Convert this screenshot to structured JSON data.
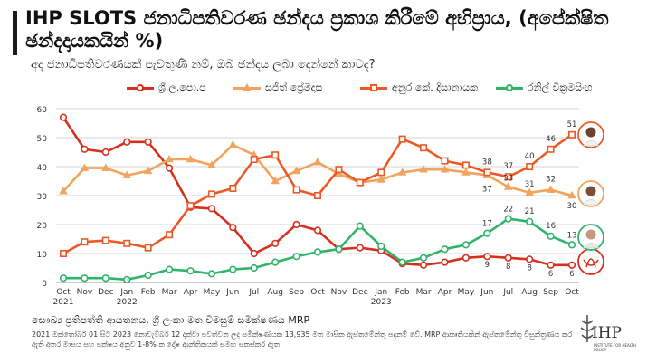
{
  "title": "IHP SLOTS ජනාධිපතිවරණ ඡන්දය ප්‍රකාශ කිරීමේ අභිප්‍රාය, (අපේක්ෂිත ඡන්දදායකයින් %)",
  "subtitle": "අද ජනාධිපතිවරණයක් පැවතුණි නම්, ඔබ ඡන්දය ලබා දෙන්නේ කාටද?",
  "legend": [
    "ශ්‍රී.ල.පො.ප",
    "සජිත් ප්‍රේමදාස",
    "අනුර කේ. දිසානායක",
    "රනිල් වික්‍රමසිංහ"
  ],
  "source": "සෞඛ්‍ය ප්‍රතිපත්ති ආයතනය, ශ්‍රී ලංකා මත විමසුම් සමීක්ෂණය MRP",
  "note": "2021 ඔක්තෝබර් 01 සිට 2023 නොවැම්බර් 12 දක්වා පවත්වන ලද සමීක්ෂණයක 13,935 මත මාසික ඇස්තමේන්තු පදනම් වේ. MRP ආකෘතියකින් ඇස්තමේන්තු විසුන්ත්‍රණය කර ඇති අතර මාසය සහ පක්ෂය අනුව 1-8% ක දෝෂ ආන්තිකයක් සමඟ සකස්කර ඇත.",
  "logo": {
    "name": "IHP",
    "tag": "INSTITUTE FOR HEALTH POLICY"
  },
  "colors": {
    "slpp": "#d6301f",
    "sajith": "#f2a35e",
    "akd": "#ea5a26",
    "ranil": "#2fb56a",
    "grid": "#d4d4d4"
  },
  "chart_data": {
    "type": "line",
    "x": [
      "Oct 2021",
      "Nov 2021",
      "Dec 2021",
      "Jan 2022",
      "Feb 2022",
      "Mar 2022",
      "Apr 2022",
      "May 2022",
      "Jun 2022",
      "Jul 2022",
      "Aug 2022",
      "Sep 2022",
      "Oct 2022",
      "Nov 2022",
      "Dec 2022",
      "Jan 2023",
      "Feb 2023",
      "Mar 2023",
      "Apr 2023",
      "May 2023",
      "Jun 2023",
      "Jul 2023",
      "Aug 2023",
      "Sep 2023",
      "Oct 2023"
    ],
    "tick_labels": [
      "Oct\n2021",
      "Nov",
      "Dec",
      "Jan\n2022",
      "Feb",
      "Mar",
      "Apr",
      "May",
      "Jun",
      "Jul",
      "Aug",
      "Sep",
      "Oct",
      "Nov",
      "Dec",
      "Jan\n2023",
      "Feb",
      "Mar",
      "Apr",
      "May",
      "Jun",
      "Jul",
      "Aug",
      "Sep",
      "Oct"
    ],
    "ylim": [
      0,
      60
    ],
    "yticks": [
      0,
      10,
      20,
      30,
      40,
      50,
      60
    ],
    "grid": true,
    "legend_position": "top",
    "series": [
      {
        "name": "ශ්‍රී.ල.පො.ප",
        "marker": "circle",
        "values": [
          57,
          46,
          45,
          48.5,
          48.5,
          39.5,
          26,
          25.5,
          19,
          10,
          13.5,
          20,
          18,
          11.5,
          12,
          11,
          6.5,
          6,
          7,
          8.5,
          9,
          8.5,
          8,
          6,
          6
        ]
      },
      {
        "name": "සජිත් ප්‍රේමදාස",
        "marker": "triangle",
        "values": [
          31.5,
          39.5,
          39.5,
          37,
          38.5,
          42.5,
          42.5,
          40.5,
          47.5,
          44,
          35,
          38.5,
          41.5,
          37.5,
          34.5,
          35.5,
          38,
          39,
          39,
          38,
          37,
          33,
          31,
          32,
          30
        ]
      },
      {
        "name": "අනුර කේ. දිසානායක",
        "marker": "square",
        "values": [
          10,
          14,
          14.5,
          13.5,
          12,
          16.5,
          26.5,
          30.5,
          32.5,
          42.5,
          44,
          32,
          30,
          39,
          34.5,
          38,
          49.5,
          46.5,
          42,
          40.5,
          38,
          36.5,
          40,
          46,
          51
        ]
      },
      {
        "name": "රනිල් වික්‍රමසිංහ",
        "marker": "circle",
        "values": [
          1.5,
          1.5,
          1.5,
          1,
          2.5,
          4.5,
          4,
          3,
          4.5,
          5,
          7,
          9,
          10.5,
          11.5,
          19.5,
          12.5,
          7,
          8.5,
          11.5,
          13,
          17,
          22,
          21,
          16,
          13
        ]
      }
    ],
    "data_labels": [
      {
        "series": 0,
        "index": 20,
        "text": "9"
      },
      {
        "series": 0,
        "index": 21,
        "text": "8"
      },
      {
        "series": 0,
        "index": 22,
        "text": "8"
      },
      {
        "series": 0,
        "index": 23,
        "text": "6"
      },
      {
        "series": 0,
        "index": 24,
        "text": "6"
      },
      {
        "series": 1,
        "index": 20,
        "text": "37"
      },
      {
        "series": 1,
        "index": 21,
        "text": "33"
      },
      {
        "series": 1,
        "index": 22,
        "text": "31"
      },
      {
        "series": 1,
        "index": 23,
        "text": "32"
      },
      {
        "series": 1,
        "index": 24,
        "text": "30"
      },
      {
        "series": 2,
        "index": 20,
        "text": "38"
      },
      {
        "series": 2,
        "index": 21,
        "text": "37"
      },
      {
        "series": 2,
        "index": 22,
        "text": "40"
      },
      {
        "series": 2,
        "index": 23,
        "text": "46"
      },
      {
        "series": 2,
        "index": 24,
        "text": "51"
      },
      {
        "series": 3,
        "index": 20,
        "text": "17"
      },
      {
        "series": 3,
        "index": 21,
        "text": "22"
      },
      {
        "series": 3,
        "index": 22,
        "text": "21"
      },
      {
        "series": 3,
        "index": 23,
        "text": "16"
      },
      {
        "series": 3,
        "index": 24,
        "text": "13"
      }
    ]
  }
}
